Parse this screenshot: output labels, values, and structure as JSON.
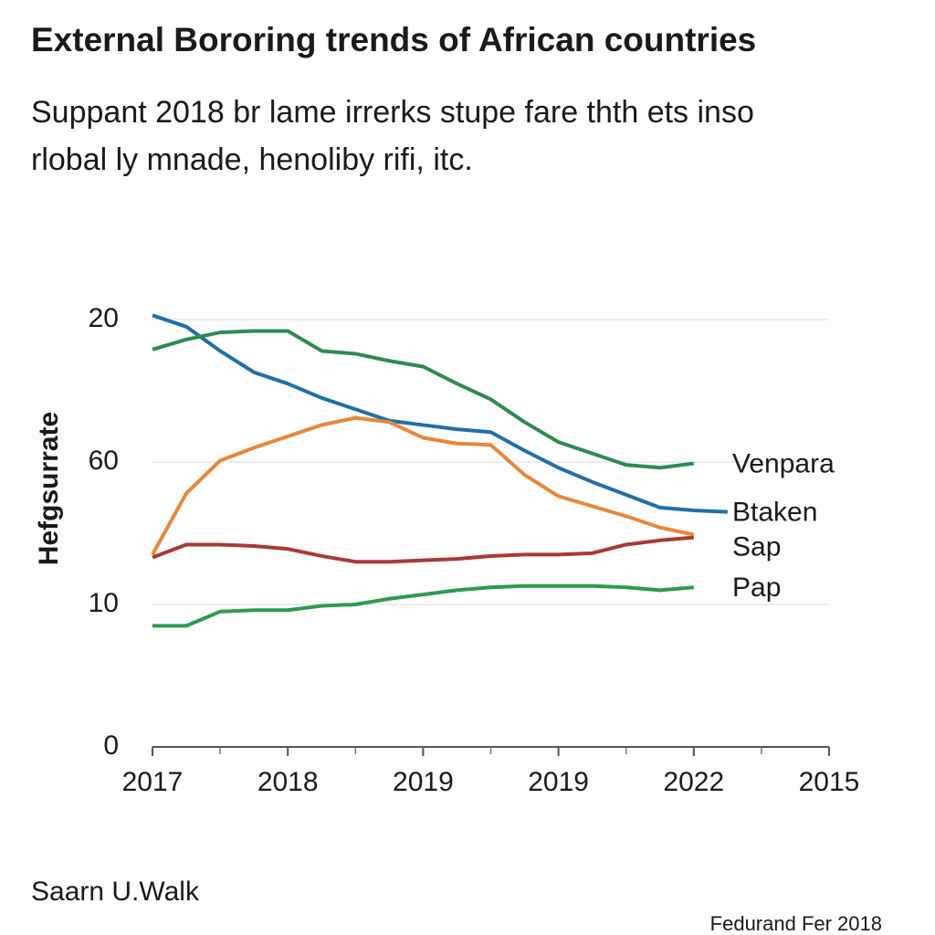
{
  "chart_data": {
    "type": "line",
    "title": "External Bororing trends of African countries",
    "subtitle": [
      "Suppant 2018 br lame irrerks stupe fare thth ets inso",
      "rlobal ly mnade, henoliby rifi, itc."
    ],
    "ylabel": "Hefgsurrate",
    "footer_left": "Saarn U.Walk",
    "footer_right": "Fedurand Fer 2018",
    "x": [
      0,
      0.5,
      1,
      1.5,
      2,
      2.5,
      3,
      3.5,
      4,
      4.5,
      5,
      5.5,
      6,
      6.5,
      7,
      7.5,
      8,
      8.5
    ],
    "xlim": [
      0,
      10
    ],
    "xticks": [
      {
        "value": 0,
        "label": "2017"
      },
      {
        "value": 2,
        "label": "2018"
      },
      {
        "value": 4,
        "label": "2019"
      },
      {
        "value": 6,
        "label": "2019"
      },
      {
        "value": 8,
        "label": "2022"
      },
      {
        "value": 10,
        "label": "2015"
      }
    ],
    "xminorticks": [
      1,
      3,
      5,
      7,
      9
    ],
    "ylim": [
      0,
      3.05
    ],
    "yticks": [
      0,
      {
        "value": 1,
        "label": "10"
      },
      {
        "value": 2,
        "label": "60"
      },
      {
        "value": 3,
        "label": "20"
      }
    ],
    "grid": true,
    "series": [
      {
        "name": "Btaken",
        "color": "#1f6fa8",
        "values": [
          3.03,
          2.95,
          2.78,
          2.63,
          2.55,
          2.45,
          2.37,
          2.29,
          2.26,
          2.23,
          2.21,
          2.08,
          1.96,
          1.86,
          1.77,
          1.68,
          1.66,
          1.65
        ]
      },
      {
        "name": "Venpara",
        "color": "#2e8b4e",
        "values": [
          2.79,
          2.86,
          2.91,
          2.92,
          2.92,
          2.78,
          2.76,
          2.71,
          2.67,
          2.55,
          2.44,
          2.28,
          2.14,
          2.06,
          1.98,
          1.96,
          1.99,
          null
        ]
      },
      {
        "name": "Sap",
        "color": "#e8873a",
        "values": [
          1.35,
          1.78,
          2.01,
          2.1,
          2.18,
          2.26,
          2.31,
          2.28,
          2.17,
          2.13,
          2.12,
          1.91,
          1.76,
          1.69,
          1.62,
          1.54,
          1.49,
          null
        ]
      },
      {
        "color": "#a83a32",
        "values": [
          1.33,
          1.42,
          1.42,
          1.41,
          1.39,
          1.34,
          1.3,
          1.3,
          1.31,
          1.32,
          1.34,
          1.35,
          1.35,
          1.36,
          1.42,
          1.45,
          1.47,
          null
        ]
      },
      {
        "name": "Pap",
        "color": "#2e9a50",
        "values": [
          0.85,
          0.85,
          0.95,
          0.96,
          0.96,
          0.99,
          1.0,
          1.04,
          1.07,
          1.1,
          1.12,
          1.13,
          1.13,
          1.13,
          1.12,
          1.1,
          1.12,
          null
        ]
      }
    ]
  }
}
